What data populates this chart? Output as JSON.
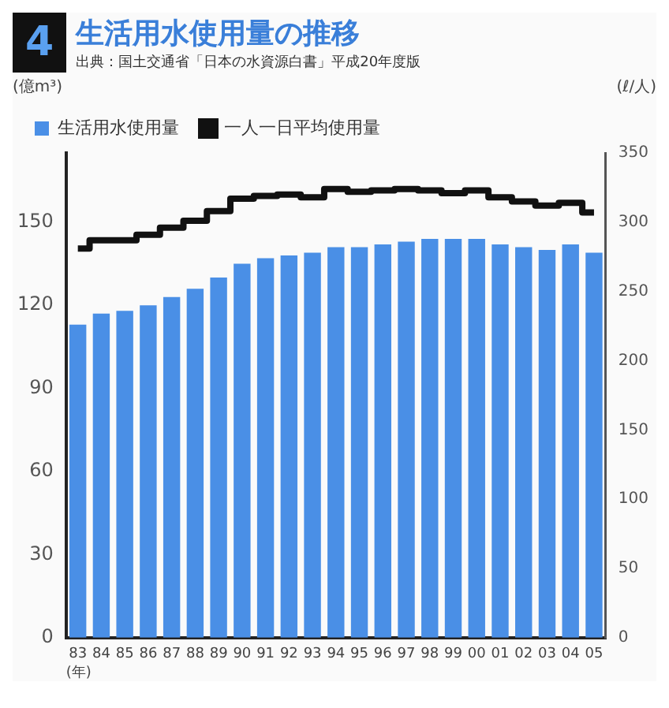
{
  "chart_data": {
    "type": "bar",
    "title": "生活用水使用量の推移",
    "subtitle": "出典：国土交通省「日本の水資源白書」平成20年度版",
    "annotations": [
      "4"
    ],
    "xlabel": "(年)",
    "ylabel": "(億m³)",
    "y2label": "(ℓ/人)",
    "categories": [
      "83",
      "84",
      "85",
      "86",
      "87",
      "88",
      "89",
      "90",
      "91",
      "92",
      "93",
      "94",
      "95",
      "96",
      "97",
      "98",
      "99",
      "00",
      "01",
      "02",
      "03",
      "04",
      "05"
    ],
    "series": [
      {
        "name": "生活用水使用量",
        "color": "#4a8fe6",
        "values": [
          113,
          117,
          118,
          120,
          123,
          126,
          130,
          135,
          137,
          138,
          139,
          141,
          141,
          142,
          143,
          144,
          144,
          144,
          142,
          141,
          140,
          142,
          139
        ]
      },
      {
        "name": "一人一日平均使用量",
        "type": "step",
        "axis": "y2",
        "color": "#111111",
        "values": [
          281,
          287,
          287,
          291,
          296,
          301,
          308,
          317,
          319,
          320,
          318,
          324,
          322,
          323,
          324,
          323,
          321,
          323,
          318,
          315,
          312,
          314,
          307
        ]
      }
    ],
    "ylim": [
      0,
      175
    ],
    "yticks": [
      0,
      30,
      60,
      90,
      120,
      150
    ],
    "y2lim": [
      0,
      350
    ],
    "y2ticks": [
      0,
      50,
      100,
      150,
      200,
      250,
      300,
      350
    ],
    "grid": false,
    "legend": "top left",
    "marker": "none"
  }
}
